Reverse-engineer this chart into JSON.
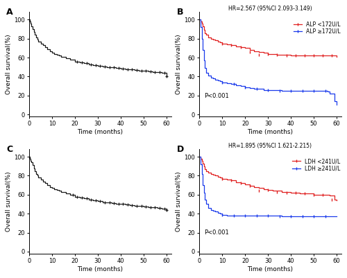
{
  "fig_width": 5.0,
  "fig_height": 4.01,
  "dpi": 100,
  "background_color": "#ffffff",
  "panel_label_fontsize": 9,
  "axis_label_fontsize": 6.5,
  "tick_fontsize": 6,
  "legend_fontsize": 5.5,
  "annotation_fontsize": 6,
  "title_fontsize": 5.5,
  "panel_A": {
    "label": "A",
    "xlabel": "Time (months)",
    "ylabel": "Overall survival(%)",
    "xlim": [
      0,
      62
    ],
    "ylim": [
      -2,
      108
    ],
    "yticks": [
      0,
      20,
      40,
      60,
      80,
      100
    ],
    "xticks": [
      0,
      10,
      20,
      30,
      40,
      50,
      60
    ],
    "curve_color": "#1a1a1a",
    "curve_times": [
      0,
      0.3,
      0.6,
      1,
      1.5,
      2,
      2.5,
      3,
      3.5,
      4,
      5,
      6,
      7,
      8,
      9,
      10,
      11,
      12,
      13,
      14,
      16,
      18,
      20,
      22,
      24,
      26,
      28,
      30,
      32,
      34,
      36,
      38,
      40,
      42,
      44,
      46,
      48,
      50,
      52,
      54,
      56,
      58,
      60
    ],
    "curve_vals": [
      100,
      98,
      96,
      93,
      90,
      87,
      84,
      81,
      79,
      77,
      75,
      73,
      71,
      69,
      67,
      65,
      64,
      63,
      62,
      61,
      59,
      58,
      56,
      55,
      54,
      53,
      52,
      51,
      50.5,
      50,
      49.5,
      49,
      48.5,
      48,
      47.5,
      47,
      46.5,
      46,
      45.5,
      45,
      44.5,
      44,
      40
    ],
    "censor_times": [
      60
    ],
    "censor_vals": [
      40
    ]
  },
  "panel_B": {
    "label": "B",
    "title": "HR=2.567 (95%CI 2.093-3.149)",
    "xlabel": "Time (months)",
    "ylabel": "Overall survival(%)",
    "xlim": [
      0,
      62
    ],
    "ylim": [
      -2,
      108
    ],
    "yticks": [
      0,
      20,
      40,
      60,
      80,
      100
    ],
    "xticks": [
      0,
      10,
      20,
      30,
      40,
      50,
      60
    ],
    "line1_label": "ALP <172U/L",
    "line1_color": "#e02020",
    "line1_times": [
      0,
      0.5,
      1,
      1.5,
      2,
      2.5,
      3,
      4,
      5,
      6,
      7,
      8,
      9,
      10,
      12,
      14,
      16,
      18,
      20,
      22,
      24,
      26,
      28,
      30,
      32,
      34,
      36,
      38,
      40,
      42,
      44,
      46,
      48,
      50,
      52,
      54,
      56,
      58,
      60
    ],
    "line1_vals": [
      100,
      98,
      96,
      93,
      89,
      86,
      84,
      81,
      80,
      79,
      78,
      77,
      76,
      75,
      74,
      73,
      72,
      71,
      70,
      68,
      67,
      66,
      65,
      64,
      64,
      63,
      63,
      63,
      62.5,
      62.5,
      62,
      62,
      62,
      62,
      62,
      62,
      62,
      62,
      61
    ],
    "line1_censor_times": [
      10,
      14,
      18,
      22,
      26,
      30,
      34,
      38,
      42,
      46,
      50,
      54,
      58
    ],
    "line1_censor_vals": [
      75,
      73,
      71,
      66,
      63,
      64,
      63,
      62.5,
      62.5,
      62,
      62,
      62,
      62
    ],
    "line2_label": "ALP ≥172U/L",
    "line2_color": "#1a3aeb",
    "line2_times": [
      0,
      0.5,
      1,
      1.5,
      2,
      2.5,
      3,
      4,
      5,
      6,
      7,
      8,
      9,
      10,
      12,
      14,
      16,
      18,
      20,
      22,
      24,
      26,
      28,
      30,
      32,
      34,
      36,
      38,
      40,
      42,
      44,
      46,
      48,
      50,
      52,
      54,
      56,
      57,
      59,
      60
    ],
    "line2_vals": [
      100,
      92,
      80,
      68,
      57,
      49,
      44,
      41,
      39,
      38,
      37,
      36,
      35,
      34,
      33,
      32,
      31,
      30,
      29,
      28,
      27,
      27,
      26,
      26,
      26,
      26,
      25,
      25,
      25,
      25,
      25,
      25,
      25,
      25,
      25,
      25,
      24,
      22,
      14,
      10
    ],
    "line2_censor_times": [
      10,
      15,
      20,
      25,
      30,
      35,
      40,
      45,
      50,
      55
    ],
    "line2_censor_vals": [
      34,
      32,
      29,
      27,
      26,
      25,
      25,
      25,
      25,
      25
    ],
    "pvalue_text": "P<0.001",
    "pvalue_x": 2,
    "pvalue_y": 18
  },
  "panel_C": {
    "label": "C",
    "xlabel": "Time (months)",
    "ylabel": "Overall survival(%)",
    "xlim": [
      0,
      62
    ],
    "ylim": [
      -2,
      108
    ],
    "yticks": [
      0,
      20,
      40,
      60,
      80,
      100
    ],
    "xticks": [
      0,
      10,
      20,
      30,
      40,
      50,
      60
    ],
    "curve_color": "#1a1a1a",
    "curve_times": [
      0,
      0.3,
      0.6,
      1,
      1.5,
      2,
      2.5,
      3,
      3.5,
      4,
      5,
      6,
      7,
      8,
      9,
      10,
      11,
      12,
      13,
      14,
      16,
      18,
      20,
      22,
      24,
      26,
      28,
      30,
      32,
      34,
      36,
      38,
      40,
      42,
      44,
      46,
      48,
      50,
      52,
      54,
      56,
      58,
      60
    ],
    "curve_vals": [
      100,
      98,
      96,
      94,
      91,
      88,
      85,
      82,
      80,
      78,
      76,
      74,
      72,
      70,
      68,
      67,
      66,
      65,
      64,
      63,
      61,
      60,
      58,
      57,
      56,
      55,
      54,
      53,
      52,
      51.5,
      51,
      50.5,
      50,
      49.5,
      49,
      48.5,
      48,
      47.5,
      47,
      46.5,
      46,
      45.5,
      44
    ],
    "censor_times": [
      60
    ],
    "censor_vals": [
      44
    ]
  },
  "panel_D": {
    "label": "D",
    "title": "HR=1.895 (95%CI 1.621-2.215)",
    "xlabel": "Time (months)",
    "ylabel": "Overall survival(%)",
    "xlim": [
      0,
      62
    ],
    "ylim": [
      -2,
      108
    ],
    "yticks": [
      0,
      20,
      40,
      60,
      80,
      100
    ],
    "xticks": [
      0,
      10,
      20,
      30,
      40,
      50,
      60
    ],
    "line1_label": "LDH <241U/L",
    "line1_color": "#e02020",
    "line1_times": [
      0,
      0.5,
      1,
      1.5,
      2,
      2.5,
      3,
      4,
      5,
      6,
      7,
      8,
      9,
      10,
      12,
      14,
      16,
      18,
      20,
      22,
      24,
      26,
      28,
      30,
      32,
      34,
      36,
      38,
      40,
      42,
      44,
      46,
      48,
      50,
      52,
      54,
      56,
      57,
      59,
      60
    ],
    "line1_vals": [
      100,
      98,
      96,
      93,
      90,
      87,
      85,
      83,
      82,
      81,
      80,
      79,
      78,
      77,
      76,
      75,
      73,
      72,
      71,
      69,
      68,
      67,
      66,
      65,
      64,
      64,
      63,
      63,
      62,
      62,
      61,
      61,
      61,
      60,
      60,
      60,
      60,
      59,
      55,
      54
    ],
    "line1_censor_times": [
      10,
      14,
      18,
      22,
      26,
      30,
      34,
      38,
      42,
      46,
      50,
      54,
      58
    ],
    "line1_censor_vals": [
      77,
      75,
      72,
      69,
      64,
      65,
      63,
      62,
      62,
      61,
      60,
      60,
      55
    ],
    "line2_label": "LDH ≥241U/L",
    "line2_color": "#1a3aeb",
    "line2_times": [
      0,
      0.5,
      1,
      1.5,
      2,
      2.5,
      3,
      4,
      5,
      6,
      7,
      8,
      9,
      10,
      12,
      14,
      16,
      18,
      20,
      22,
      24,
      26,
      28,
      30,
      32,
      34,
      36,
      38,
      40,
      42,
      44,
      46,
      48,
      50,
      52,
      54,
      56,
      58,
      60
    ],
    "line2_vals": [
      100,
      92,
      82,
      70,
      62,
      55,
      50,
      46,
      44,
      43,
      42,
      41,
      40,
      39,
      38,
      38,
      38,
      38,
      38,
      38,
      38,
      38,
      38,
      38,
      38,
      38,
      37,
      37,
      37,
      37,
      37,
      37,
      37,
      37,
      37,
      37,
      37,
      37,
      37
    ],
    "line2_censor_times": [
      10,
      15,
      20,
      25,
      30,
      35,
      40,
      45,
      50,
      55
    ],
    "line2_censor_vals": [
      39,
      38,
      38,
      38,
      38,
      37,
      37,
      37,
      37,
      37
    ],
    "pvalue_text": "P<0.001",
    "pvalue_x": 2,
    "pvalue_y": 18
  }
}
